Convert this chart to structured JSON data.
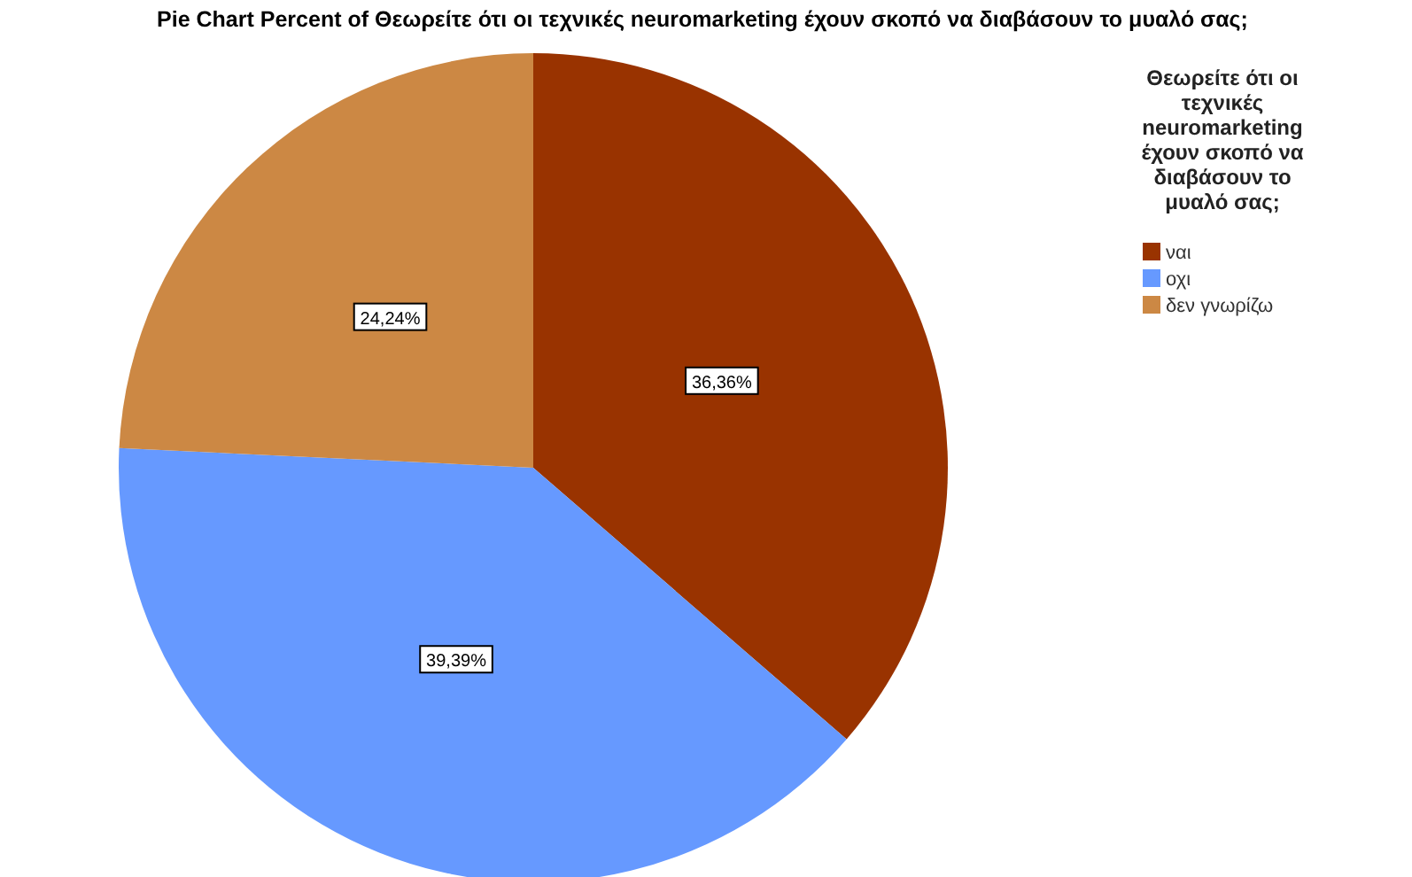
{
  "chart_data": {
    "type": "pie",
    "title": "Pie Chart Percent of Θεωρείτε ότι οι τεχνικές neuromarketing έχουν σκοπό να διαβάσουν το μυαλό σας;",
    "legend_title": "Θεωρείτε ότι οι τεχνικές neuromarketing έχουν σκοπό να διαβάσουν το μυαλό σας;",
    "categories": [
      "ναι",
      "οχι",
      "δεν γνωρίζω"
    ],
    "values": [
      36.36,
      39.39,
      24.24
    ],
    "value_labels": [
      "36,36%",
      "39,39%",
      "24,24%"
    ],
    "colors": [
      "#993300",
      "#6699ff",
      "#cc8844"
    ],
    "legend": "top right"
  }
}
